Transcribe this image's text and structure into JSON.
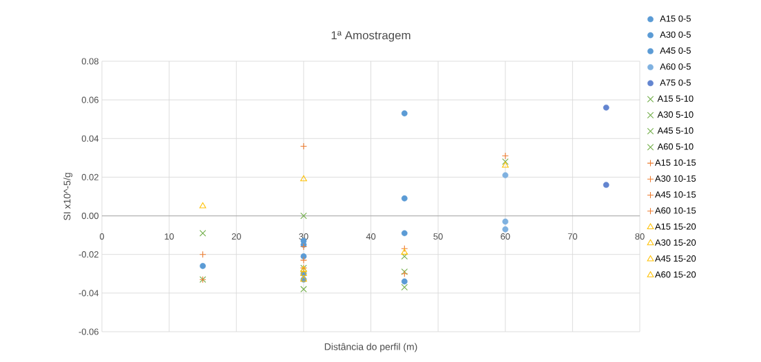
{
  "chart_data": {
    "type": "scatter",
    "title": "1ª Amostragem",
    "xlabel": "Distância do perfil (m)",
    "ylabel": "SI x10^-5/g",
    "xlim": [
      0,
      80
    ],
    "xticks": [
      0,
      10,
      20,
      30,
      40,
      50,
      60,
      70,
      80
    ],
    "ylim": [
      -0.06,
      0.08
    ],
    "yticks": [
      {
        "value": -0.06,
        "label": "-0.06"
      },
      {
        "value": -0.04,
        "label": "-0.04"
      },
      {
        "value": -0.02,
        "label": "-0.02"
      },
      {
        "value": 0,
        "label": "0.00"
      },
      {
        "value": 0.02,
        "label": "0.02"
      },
      {
        "value": 0.04,
        "label": "0.04"
      },
      {
        "value": 0.06,
        "label": "0.06"
      },
      {
        "value": 0.08,
        "label": "0.08"
      }
    ],
    "grid": true,
    "legend": "right",
    "series": [
      {
        "name": "A15 0-5",
        "color": "#5b9bd5",
        "marker": "circle",
        "x": [
          15
        ],
        "values": [
          -0.026
        ]
      },
      {
        "name": "A30 0-5",
        "color": "#5b9bd5",
        "marker": "circle",
        "x": [
          30,
          30,
          30,
          30,
          30
        ],
        "values": [
          -0.013,
          -0.015,
          -0.021,
          -0.03,
          -0.033
        ]
      },
      {
        "name": "A45 0-5",
        "color": "#5b9bd5",
        "marker": "circle",
        "x": [
          45,
          45,
          45,
          45
        ],
        "values": [
          0.053,
          0.009,
          -0.009,
          -0.034
        ]
      },
      {
        "name": "A60 0-5",
        "color": "#7fb1e0",
        "marker": "circle",
        "x": [
          60,
          60,
          60
        ],
        "values": [
          0.021,
          -0.003,
          -0.007
        ]
      },
      {
        "name": "A75 0-5",
        "color": "#6385d0",
        "marker": "circle",
        "x": [
          75,
          75
        ],
        "values": [
          0.056,
          0.016
        ]
      },
      {
        "name": "A15 5-10",
        "color": "#70ad47",
        "marker": "cross",
        "x": [
          15,
          15
        ],
        "values": [
          -0.009,
          -0.033
        ]
      },
      {
        "name": "A30 5-10",
        "color": "#70ad47",
        "marker": "cross",
        "x": [
          30,
          30,
          30
        ],
        "values": [
          0.0,
          -0.027,
          -0.038
        ]
      },
      {
        "name": "A45 5-10",
        "color": "#70ad47",
        "marker": "cross",
        "x": [
          45,
          45,
          45
        ],
        "values": [
          -0.021,
          -0.029,
          -0.037
        ]
      },
      {
        "name": "A60 5-10",
        "color": "#70ad47",
        "marker": "cross",
        "x": [
          60
        ],
        "values": [
          0.028
        ]
      },
      {
        "name": "A15 10-15",
        "color": "#ed7d31",
        "marker": "plus",
        "x": [
          15,
          15
        ],
        "values": [
          -0.02,
          -0.033
        ]
      },
      {
        "name": "A30 10-15",
        "color": "#ed7d31",
        "marker": "plus",
        "x": [
          30,
          30,
          30,
          30
        ],
        "values": [
          0.036,
          -0.016,
          -0.023,
          -0.027
        ]
      },
      {
        "name": "A45 10-15",
        "color": "#ed7d31",
        "marker": "plus",
        "x": [
          45,
          45
        ],
        "values": [
          -0.017,
          -0.03
        ]
      },
      {
        "name": "A60 10-15",
        "color": "#ed7d31",
        "marker": "plus",
        "x": [
          60
        ],
        "values": [
          0.031
        ]
      },
      {
        "name": "A15 15-20",
        "color": "#ffc000",
        "marker": "triangle",
        "x": [
          15
        ],
        "values": [
          0.005
        ]
      },
      {
        "name": "A30 15-20",
        "color": "#ffc000",
        "marker": "triangle",
        "x": [
          30,
          30,
          30,
          30
        ],
        "values": [
          0.019,
          -0.028,
          -0.03,
          -0.033
        ]
      },
      {
        "name": "A45 15-20",
        "color": "#ffc000",
        "marker": "triangle",
        "x": [
          45
        ],
        "values": [
          -0.019
        ]
      },
      {
        "name": "A60 15-20",
        "color": "#ffc000",
        "marker": "triangle",
        "x": [
          60
        ],
        "values": [
          0.026
        ]
      }
    ]
  }
}
